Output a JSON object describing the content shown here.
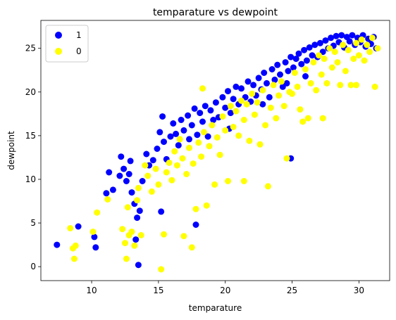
{
  "chart_data": {
    "type": "scatter",
    "title": "temparature vs dewpoint",
    "xlabel": "temparature",
    "ylabel": "dewpoint",
    "xlim": [
      6.2,
      32.3
    ],
    "ylim": [
      -1.6,
      28.2
    ],
    "xticks": [
      10,
      15,
      20,
      25,
      30
    ],
    "yticks": [
      0,
      5,
      10,
      15,
      20,
      25
    ],
    "xtick_labels": [
      "10",
      "15",
      "20",
      "25",
      "30"
    ],
    "ytick_labels": [
      "0",
      "5",
      "10",
      "15",
      "20",
      "25"
    ],
    "grid": false,
    "legend_position": "upper-left",
    "series": [
      {
        "name": "1",
        "color": "#0000ff",
        "points": [
          [
            7.4,
            2.5
          ],
          [
            9.0,
            4.6
          ],
          [
            10.2,
            3.4
          ],
          [
            10.3,
            2.2
          ],
          [
            11.1,
            8.4
          ],
          [
            11.3,
            10.8
          ],
          [
            11.6,
            8.8
          ],
          [
            12.1,
            10.4
          ],
          [
            12.2,
            12.6
          ],
          [
            12.4,
            11.2
          ],
          [
            12.6,
            9.8
          ],
          [
            12.8,
            10.6
          ],
          [
            12.9,
            12.1
          ],
          [
            13.0,
            8.5
          ],
          [
            13.2,
            7.2
          ],
          [
            13.4,
            5.6
          ],
          [
            13.3,
            3.1
          ],
          [
            13.5,
            0.2
          ],
          [
            13.6,
            6.4
          ],
          [
            13.8,
            9.8
          ],
          [
            14.1,
            12.9
          ],
          [
            14.3,
            11.6
          ],
          [
            14.6,
            12.2
          ],
          [
            14.9,
            13.5
          ],
          [
            15.1,
            15.4
          ],
          [
            15.3,
            17.2
          ],
          [
            15.2,
            6.3
          ],
          [
            15.4,
            14.3
          ],
          [
            15.6,
            12.3
          ],
          [
            15.9,
            14.9
          ],
          [
            16.1,
            16.4
          ],
          [
            16.3,
            15.2
          ],
          [
            16.5,
            13.9
          ],
          [
            16.7,
            16.8
          ],
          [
            16.9,
            15.6
          ],
          [
            17.2,
            17.3
          ],
          [
            17.3,
            14.6
          ],
          [
            17.5,
            16.2
          ],
          [
            17.7,
            18.1
          ],
          [
            17.9,
            15.1
          ],
          [
            17.8,
            4.8
          ],
          [
            18.1,
            17.6
          ],
          [
            18.3,
            16.6
          ],
          [
            18.5,
            18.4
          ],
          [
            18.7,
            14.9
          ],
          [
            18.9,
            17.9
          ],
          [
            19.1,
            16.8
          ],
          [
            19.3,
            18.8
          ],
          [
            19.5,
            17.1
          ],
          [
            19.8,
            19.4
          ],
          [
            20.0,
            18.2
          ],
          [
            20.2,
            20.1
          ],
          [
            20.4,
            17.6
          ],
          [
            20.6,
            19.2
          ],
          [
            20.8,
            20.6
          ],
          [
            21.0,
            18.6
          ],
          [
            21.2,
            20.4
          ],
          [
            21.5,
            19.4
          ],
          [
            21.7,
            21.2
          ],
          [
            21.9,
            18.9
          ],
          [
            22.1,
            20.8
          ],
          [
            22.3,
            19.6
          ],
          [
            22.5,
            21.6
          ],
          [
            22.7,
            20.3
          ],
          [
            22.9,
            22.2
          ],
          [
            23.1,
            21.0
          ],
          [
            23.3,
            19.4
          ],
          [
            23.5,
            22.6
          ],
          [
            23.7,
            21.4
          ],
          [
            23.9,
            23.1
          ],
          [
            24.1,
            22.0
          ],
          [
            24.3,
            20.6
          ],
          [
            24.5,
            23.4
          ],
          [
            24.7,
            22.4
          ],
          [
            24.9,
            24.0
          ],
          [
            24.9,
            12.4
          ],
          [
            25.1,
            22.8
          ],
          [
            25.3,
            23.8
          ],
          [
            25.5,
            24.4
          ],
          [
            25.7,
            23.2
          ],
          [
            25.9,
            24.8
          ],
          [
            26.1,
            23.6
          ],
          [
            26.3,
            25.1
          ],
          [
            26.5,
            24.2
          ],
          [
            26.7,
            25.4
          ],
          [
            26.9,
            24.0
          ],
          [
            27.1,
            25.6
          ],
          [
            27.3,
            24.6
          ],
          [
            27.5,
            25.9
          ],
          [
            27.7,
            25.0
          ],
          [
            27.9,
            26.2
          ],
          [
            28.1,
            25.3
          ],
          [
            28.3,
            26.4
          ],
          [
            28.5,
            25.7
          ],
          [
            28.7,
            26.5
          ],
          [
            28.9,
            25.1
          ],
          [
            29.1,
            26.3
          ],
          [
            29.3,
            25.8
          ],
          [
            29.5,
            26.5
          ],
          [
            29.7,
            25.4
          ],
          [
            29.9,
            26.2
          ],
          [
            30.1,
            25.7
          ],
          [
            30.3,
            26.5
          ],
          [
            30.5,
            25.2
          ],
          [
            30.7,
            26.1
          ],
          [
            30.9,
            25.5
          ],
          [
            31.1,
            26.3
          ],
          [
            31.3,
            25.0
          ],
          [
            26.0,
            21.8
          ],
          [
            24.6,
            21.0
          ],
          [
            22.8,
            18.6
          ],
          [
            20.3,
            15.8
          ]
        ]
      },
      {
        "name": "0",
        "color": "#ffff00",
        "points": [
          [
            8.4,
            4.4
          ],
          [
            8.6,
            2.1
          ],
          [
            8.7,
            0.9
          ],
          [
            8.8,
            2.4
          ],
          [
            10.1,
            4.0
          ],
          [
            10.4,
            6.2
          ],
          [
            11.2,
            7.7
          ],
          [
            12.3,
            4.3
          ],
          [
            12.5,
            2.7
          ],
          [
            12.6,
            0.9
          ],
          [
            12.7,
            6.8
          ],
          [
            12.8,
            3.6
          ],
          [
            13.0,
            4.0
          ],
          [
            13.2,
            2.4
          ],
          [
            13.4,
            7.6
          ],
          [
            13.5,
            9.0
          ],
          [
            13.7,
            3.6
          ],
          [
            14.0,
            11.6
          ],
          [
            14.2,
            10.4
          ],
          [
            14.5,
            8.6
          ],
          [
            14.8,
            11.2
          ],
          [
            15.0,
            9.4
          ],
          [
            15.2,
            -0.3
          ],
          [
            15.4,
            3.7
          ],
          [
            15.6,
            10.8
          ],
          [
            15.8,
            11.9
          ],
          [
            16.0,
            9.9
          ],
          [
            16.2,
            13.2
          ],
          [
            16.4,
            11.6
          ],
          [
            16.6,
            14.6
          ],
          [
            16.8,
            12.4
          ],
          [
            16.9,
            3.5
          ],
          [
            17.1,
            10.6
          ],
          [
            17.3,
            13.6
          ],
          [
            17.5,
            2.2
          ],
          [
            17.6,
            11.8
          ],
          [
            17.8,
            6.6
          ],
          [
            18.0,
            14.2
          ],
          [
            18.2,
            12.6
          ],
          [
            18.4,
            15.4
          ],
          [
            18.6,
            7.0
          ],
          [
            18.8,
            13.8
          ],
          [
            19.0,
            16.2
          ],
          [
            19.2,
            9.4
          ],
          [
            19.4,
            14.8
          ],
          [
            19.6,
            12.8
          ],
          [
            19.8,
            17.2
          ],
          [
            20.0,
            15.6
          ],
          [
            20.2,
            9.8
          ],
          [
            20.4,
            18.4
          ],
          [
            20.6,
            16.0
          ],
          [
            20.8,
            17.8
          ],
          [
            21.0,
            15.0
          ],
          [
            21.2,
            19.0
          ],
          [
            21.4,
            16.8
          ],
          [
            21.6,
            18.6
          ],
          [
            21.8,
            14.4
          ],
          [
            22.0,
            19.8
          ],
          [
            22.2,
            17.4
          ],
          [
            22.4,
            18.8
          ],
          [
            22.6,
            14.0
          ],
          [
            22.8,
            20.2
          ],
          [
            23.0,
            16.2
          ],
          [
            23.2,
            9.2
          ],
          [
            23.4,
            18.2
          ],
          [
            23.6,
            20.8
          ],
          [
            23.8,
            17.0
          ],
          [
            24.0,
            19.6
          ],
          [
            24.2,
            21.2
          ],
          [
            24.4,
            18.4
          ],
          [
            24.6,
            12.4
          ],
          [
            24.8,
            20.0
          ],
          [
            25.0,
            19.8
          ],
          [
            25.2,
            22.2
          ],
          [
            25.4,
            20.6
          ],
          [
            25.6,
            18.0
          ],
          [
            25.8,
            16.6
          ],
          [
            26.0,
            22.6
          ],
          [
            26.2,
            17.0
          ],
          [
            26.4,
            21.0
          ],
          [
            26.6,
            23.4
          ],
          [
            26.8,
            20.2
          ],
          [
            27.0,
            24.2
          ],
          [
            27.2,
            22.0
          ],
          [
            27.4,
            23.8
          ],
          [
            27.6,
            21.0
          ],
          [
            27.8,
            25.0
          ],
          [
            28.0,
            22.8
          ],
          [
            28.2,
            24.6
          ],
          [
            28.4,
            23.4
          ],
          [
            28.6,
            20.8
          ],
          [
            28.8,
            25.4
          ],
          [
            29.0,
            22.4
          ],
          [
            29.2,
            24.8
          ],
          [
            29.4,
            20.8
          ],
          [
            29.6,
            23.8
          ],
          [
            29.8,
            25.6
          ],
          [
            30.0,
            24.2
          ],
          [
            30.2,
            26.0
          ],
          [
            30.4,
            23.6
          ],
          [
            30.6,
            25.4
          ],
          [
            30.8,
            24.6
          ],
          [
            31.0,
            26.2
          ],
          [
            31.2,
            20.6
          ],
          [
            31.4,
            25.0
          ],
          [
            18.3,
            20.4
          ],
          [
            21.4,
            9.8
          ],
          [
            27.3,
            17.0
          ],
          [
            29.8,
            20.8
          ]
        ]
      }
    ]
  }
}
